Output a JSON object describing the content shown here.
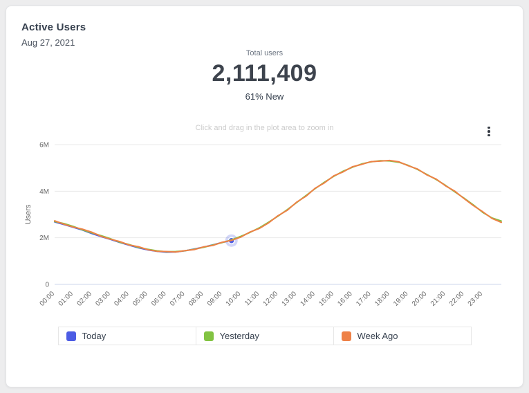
{
  "card": {
    "title": "Active Users",
    "date": "Aug 27, 2021"
  },
  "stats": {
    "label": "Total users",
    "value": "2,111,409",
    "sub": "61% New"
  },
  "chart_data": {
    "type": "line",
    "subtitle": "Click and drag in the plot area to zoom in",
    "ylabel": "Users",
    "ylim": [
      0,
      6
    ],
    "xlim": [
      0,
      24
    ],
    "grid": "horizontal",
    "legend_position": "bottom",
    "yticks": [
      {
        "value": 0,
        "label": "0"
      },
      {
        "value": 2,
        "label": "2M"
      },
      {
        "value": 4,
        "label": "4M"
      },
      {
        "value": 6,
        "label": "6M"
      }
    ],
    "xtick_labels": [
      "00:00",
      "01:00",
      "02:00",
      "03:00",
      "04:00",
      "05:00",
      "06:00",
      "07:00",
      "08:00",
      "09:00",
      "10:00",
      "11:00",
      "12:00",
      "13:00",
      "14:00",
      "15:00",
      "16:00",
      "17:00",
      "18:00",
      "19:00",
      "20:00",
      "21:00",
      "22:00",
      "23:00"
    ],
    "interval_hours": 0.5,
    "value_unit": "millions",
    "series": [
      {
        "name": "Today",
        "color": "#4c5ce4",
        "start_hour": 0,
        "end_marker": true,
        "values": [
          2.68,
          2.57,
          2.45,
          2.33,
          2.18,
          2.05,
          1.93,
          1.8,
          1.68,
          1.57,
          1.48,
          1.42,
          1.38,
          1.39,
          1.44,
          1.52,
          1.6,
          1.7,
          1.8,
          1.88
        ]
      },
      {
        "name": "Yesterday",
        "color": "#82c342",
        "start_hour": 0,
        "end_marker": false,
        "values": [
          2.7,
          2.61,
          2.49,
          2.34,
          2.21,
          2.09,
          1.96,
          1.81,
          1.71,
          1.59,
          1.51,
          1.44,
          1.4,
          1.41,
          1.44,
          1.51,
          1.59,
          1.69,
          1.79,
          1.91,
          2.06,
          2.23,
          2.43,
          2.67,
          2.93,
          3.21,
          3.51,
          3.81,
          4.11,
          4.39,
          4.64,
          4.86,
          5.03,
          5.17,
          5.26,
          5.31,
          5.3,
          5.24,
          5.11,
          4.93,
          4.72,
          4.5,
          4.25,
          3.97,
          3.7,
          3.41,
          3.09,
          2.85,
          2.72
        ]
      },
      {
        "name": "Week Ago",
        "color": "#ee8147",
        "start_hour": 0,
        "end_marker": false,
        "values": [
          2.73,
          2.58,
          2.46,
          2.37,
          2.24,
          2.06,
          1.94,
          1.84,
          1.69,
          1.62,
          1.49,
          1.42,
          1.41,
          1.39,
          1.45,
          1.49,
          1.61,
          1.67,
          1.81,
          1.89,
          2.03,
          2.25,
          2.4,
          2.64,
          2.95,
          3.18,
          3.53,
          3.78,
          4.13,
          4.36,
          4.66,
          4.83,
          5.05,
          5.15,
          5.27,
          5.29,
          5.32,
          5.26,
          5.09,
          4.95,
          4.7,
          4.52,
          4.23,
          4.0,
          3.68,
          3.38,
          3.12,
          2.83,
          2.66
        ]
      }
    ]
  }
}
